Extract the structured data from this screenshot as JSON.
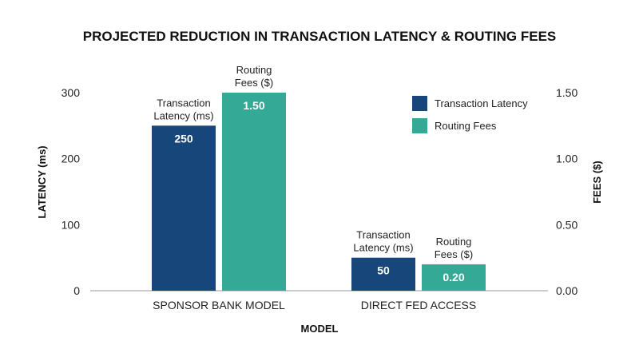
{
  "chart_data": {
    "type": "bar",
    "title": "PROJECTED REDUCTION IN TRANSACTION LATENCY & ROUTING FEES",
    "xlabel": "MODEL",
    "ylabel_left": "LATENCY (ms)",
    "ylabel_right": "FEES ($)",
    "categories": [
      "SPONSOR BANK MODEL",
      "DIRECT FED ACCESS"
    ],
    "left_axis": {
      "min": 0,
      "max": 300,
      "ticks": [
        0,
        100,
        200,
        300
      ],
      "tick_labels": [
        "0",
        "100",
        "200",
        "300"
      ]
    },
    "right_axis": {
      "min": 0,
      "max": 1.5,
      "ticks": [
        0,
        0.5,
        1.0,
        1.5
      ],
      "tick_labels": [
        "0.00",
        "0.50",
        "1.00",
        "1.50"
      ]
    },
    "grid": false,
    "legend_position": "top-right",
    "series": [
      {
        "name": "Transaction Latency",
        "axis": "left",
        "color": "#17467a",
        "values": [
          250,
          50
        ],
        "value_labels": [
          "250",
          "50"
        ],
        "bar_annotations": [
          [
            "Transaction",
            "Latency (ms)"
          ],
          [
            "Transaction",
            "Latency (ms)"
          ]
        ]
      },
      {
        "name": "Routing Fees",
        "axis": "right",
        "color": "#34a996",
        "values": [
          1.5,
          0.2
        ],
        "value_labels": [
          "1.50",
          "0.20"
        ],
        "bar_annotations": [
          [
            "Routing",
            "Fees ($)"
          ],
          [
            "Routing",
            "Fees ($)"
          ]
        ]
      }
    ]
  }
}
